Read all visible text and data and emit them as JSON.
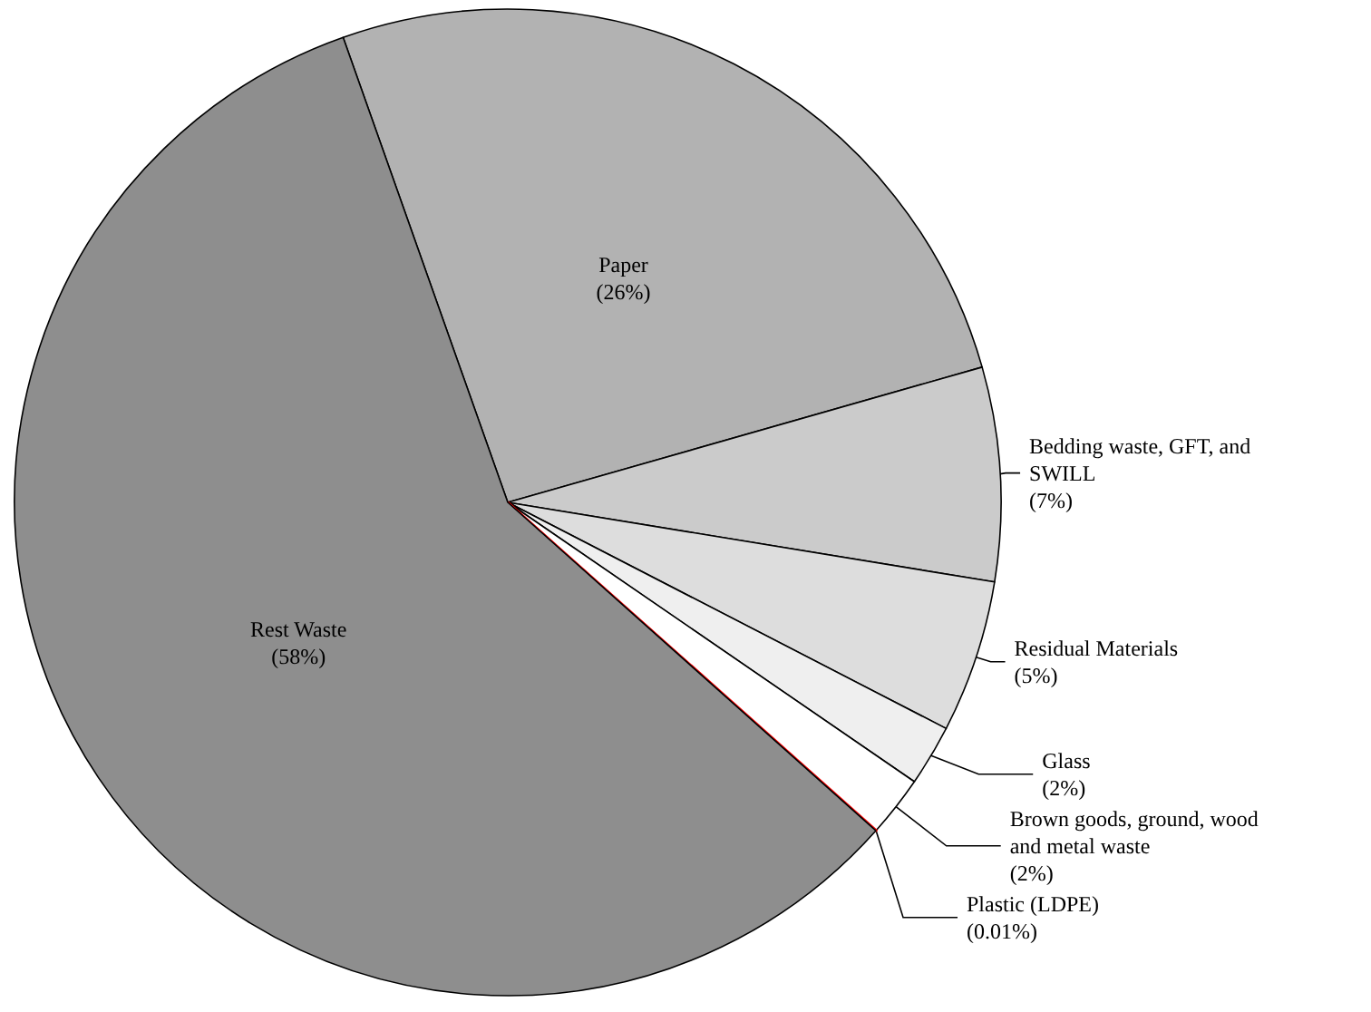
{
  "chart_data": {
    "type": "pie",
    "categories": [
      "Paper",
      "Bedding waste, GFT, and SWILL",
      "Residual Materials",
      "Glass",
      "Brown goods, ground, wood and metal waste",
      "Plastic (LDPE)",
      "Rest Waste"
    ],
    "values": [
      26,
      7,
      5,
      2,
      2,
      0.01,
      58
    ],
    "colors": [
      "#b2b2b2",
      "#cbcbcb",
      "#dddddd",
      "#efefef",
      "#ffffff",
      "#ff0000",
      "#8e8e8e"
    ],
    "value_labels": [
      "(26%)",
      "(7%)",
      "(5%)",
      "(2%)",
      "(2%)",
      "(0.01%)",
      "(58%)"
    ],
    "legend": false
  }
}
